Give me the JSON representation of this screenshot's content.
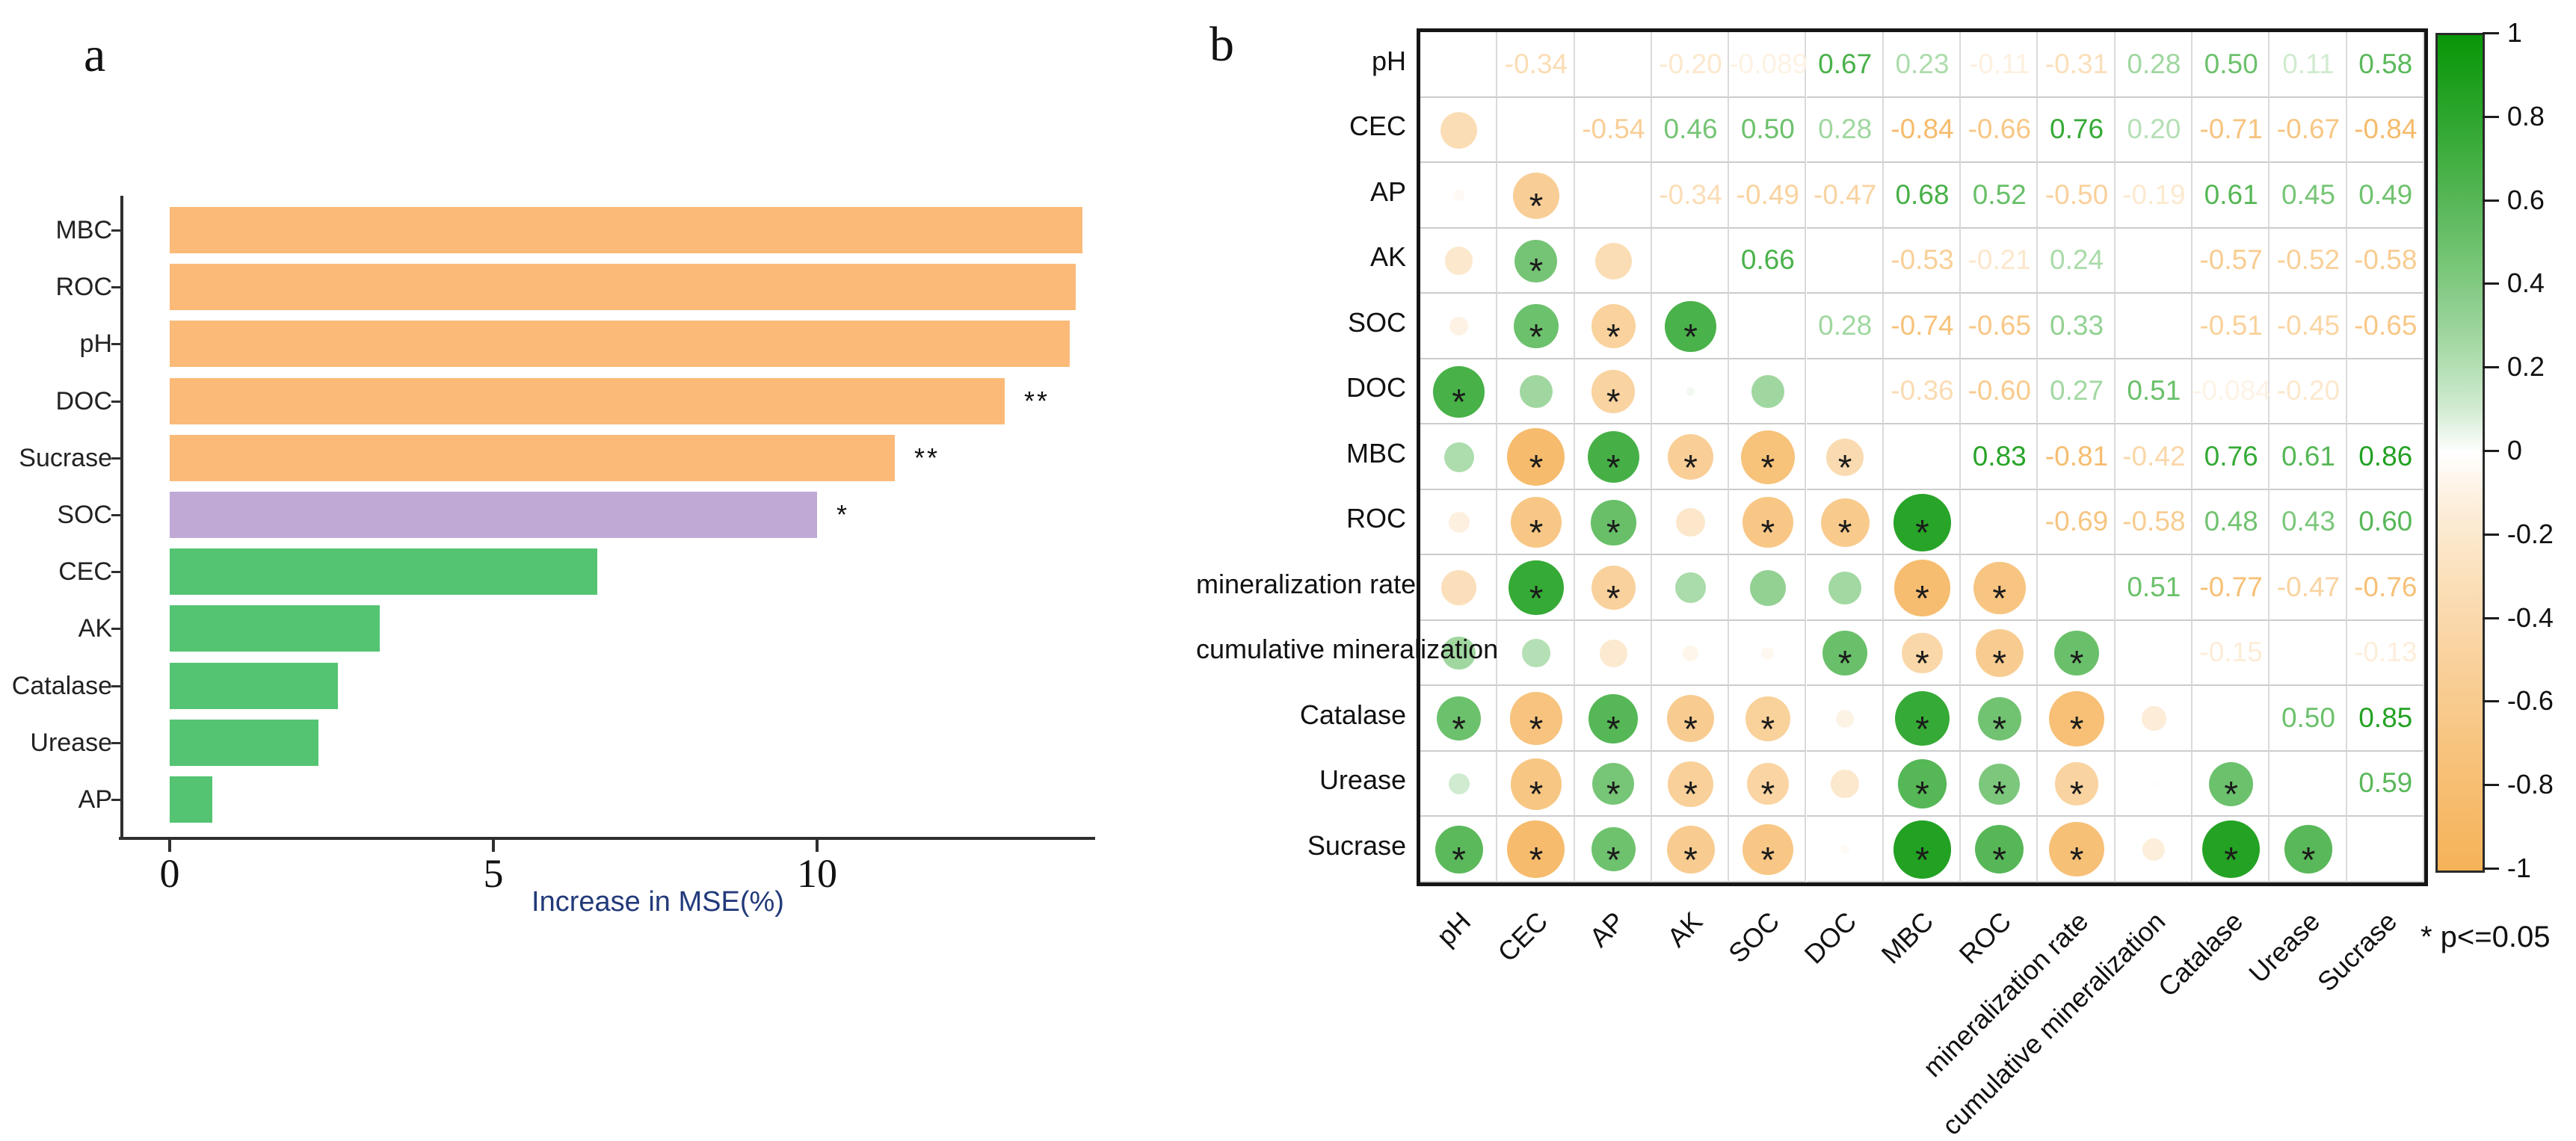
{
  "figure": {
    "panel_a_letter": "a",
    "panel_b_letter": "b",
    "legend_note": "* p<=0.05"
  },
  "colors": {
    "bar_orange": "#fbba78",
    "bar_purple": "#c0a9d4",
    "bar_green": "#54c472",
    "positive_end": "#089608",
    "negative_end": "#f5b258",
    "axis_title_color": "#223a7a",
    "axis_line": "#2f2f2f",
    "text": "#111111"
  },
  "chart_data": [
    {
      "type": "bar",
      "orientation": "horizontal",
      "title": "",
      "xlabel": "Increase in MSE(%)",
      "ylabel": "",
      "xlim": [
        0,
        14.3
      ],
      "xticks": [
        0,
        5,
        10
      ],
      "grid": false,
      "categories": [
        "MBC",
        "ROC",
        "pH",
        "DOC",
        "Sucrase",
        "SOC",
        "CEC",
        "AK",
        "Catalase",
        "Urease",
        "AP"
      ],
      "values": [
        14.1,
        14.0,
        13.9,
        12.9,
        11.2,
        10.0,
        6.6,
        3.25,
        2.6,
        2.3,
        0.66
      ],
      "significance": [
        "",
        "",
        "",
        "**",
        "**",
        "*",
        "",
        "",
        "",
        "",
        ""
      ],
      "bar_colors": [
        "orange",
        "orange",
        "orange",
        "orange",
        "orange",
        "purple",
        "green",
        "green",
        "green",
        "green",
        "green"
      ]
    },
    {
      "type": "heatmap",
      "variant": "correlation-matrix",
      "title": "",
      "labels": [
        "pH",
        "CEC",
        "AP",
        "AK",
        "SOC",
        "DOC",
        "MBC",
        "ROC",
        "mineralization rate",
        "cumulative mineralization",
        "Catalase",
        "Urease",
        "Sucrase"
      ],
      "legend_note": "* p<=0.05",
      "colorbar_ticks": [
        "1",
        "0.8",
        "0.6",
        "0.4",
        "0.2",
        "0",
        "-0.2",
        "-0.4",
        "-0.6",
        "-0.8",
        "-1"
      ],
      "colorbar_range": [
        1,
        -1
      ],
      "pair_format": [
        "row_index",
        "col_index",
        "r",
        "display_label",
        "significant"
      ],
      "pairs": [
        [
          0,
          1,
          -0.34,
          "-0.34",
          0
        ],
        [
          0,
          2,
          -0.03,
          "",
          0
        ],
        [
          0,
          3,
          -0.2,
          "-0.20",
          0
        ],
        [
          0,
          4,
          -0.089,
          "-0.089",
          0
        ],
        [
          0,
          5,
          0.67,
          "0.67",
          1
        ],
        [
          0,
          6,
          0.23,
          "0.23",
          0
        ],
        [
          0,
          7,
          -0.11,
          "-0.11",
          0
        ],
        [
          0,
          8,
          -0.31,
          "-0.31",
          0
        ],
        [
          0,
          9,
          0.28,
          "0.28",
          0
        ],
        [
          0,
          10,
          0.5,
          "0.50",
          1
        ],
        [
          0,
          11,
          0.11,
          "0.11",
          0
        ],
        [
          0,
          12,
          0.58,
          "0.58",
          1
        ],
        [
          1,
          2,
          -0.54,
          "-0.54",
          1
        ],
        [
          1,
          3,
          0.46,
          "0.46",
          1
        ],
        [
          1,
          4,
          0.5,
          "0.50",
          1
        ],
        [
          1,
          5,
          0.28,
          "0.28",
          0
        ],
        [
          1,
          6,
          -0.84,
          "-0.84",
          1
        ],
        [
          1,
          7,
          -0.66,
          "-0.66",
          1
        ],
        [
          1,
          8,
          0.76,
          "0.76",
          1
        ],
        [
          1,
          9,
          0.2,
          "0.20",
          0
        ],
        [
          1,
          10,
          -0.71,
          "-0.71",
          1
        ],
        [
          1,
          11,
          -0.67,
          "-0.67",
          1
        ],
        [
          1,
          12,
          -0.84,
          "-0.84",
          1
        ],
        [
          2,
          3,
          -0.34,
          "-0.34",
          0
        ],
        [
          2,
          4,
          -0.49,
          "-0.49",
          1
        ],
        [
          2,
          5,
          -0.47,
          "-0.47",
          1
        ],
        [
          2,
          6,
          0.68,
          "0.68",
          1
        ],
        [
          2,
          7,
          0.52,
          "0.52",
          1
        ],
        [
          2,
          8,
          -0.5,
          "-0.50",
          1
        ],
        [
          2,
          9,
          -0.19,
          "-0.19",
          0
        ],
        [
          2,
          10,
          0.61,
          "0.61",
          1
        ],
        [
          2,
          11,
          0.45,
          "0.45",
          1
        ],
        [
          2,
          12,
          0.49,
          "0.49",
          1
        ],
        [
          3,
          4,
          0.66,
          "0.66",
          1
        ],
        [
          3,
          5,
          0.02,
          "",
          0
        ],
        [
          3,
          6,
          -0.53,
          "-0.53",
          1
        ],
        [
          3,
          7,
          -0.21,
          "-0.21",
          0
        ],
        [
          3,
          8,
          0.24,
          "0.24",
          0
        ],
        [
          3,
          9,
          -0.06,
          "",
          0
        ],
        [
          3,
          10,
          -0.57,
          "-0.57",
          1
        ],
        [
          3,
          11,
          -0.52,
          "-0.52",
          1
        ],
        [
          3,
          12,
          -0.58,
          "-0.58",
          1
        ],
        [
          4,
          5,
          0.28,
          "0.28",
          0
        ],
        [
          4,
          6,
          -0.74,
          "-0.74",
          1
        ],
        [
          4,
          7,
          -0.65,
          "-0.65",
          1
        ],
        [
          4,
          8,
          0.33,
          "0.33",
          0
        ],
        [
          4,
          9,
          -0.04,
          "",
          0
        ],
        [
          4,
          10,
          -0.51,
          "-0.51",
          1
        ],
        [
          4,
          11,
          -0.45,
          "-0.45",
          1
        ],
        [
          4,
          12,
          -0.65,
          "-0.65",
          1
        ],
        [
          5,
          6,
          -0.36,
          "-0.36",
          1
        ],
        [
          5,
          7,
          -0.6,
          "-0.60",
          1
        ],
        [
          5,
          8,
          0.27,
          "0.27",
          0
        ],
        [
          5,
          9,
          0.51,
          "0.51",
          1
        ],
        [
          5,
          10,
          -0.084,
          "-0.084",
          0
        ],
        [
          5,
          11,
          -0.2,
          "-0.20",
          0
        ],
        [
          5,
          12,
          -0.02,
          "",
          0
        ],
        [
          6,
          7,
          0.83,
          "0.83",
          1
        ],
        [
          6,
          8,
          -0.81,
          "-0.81",
          1
        ],
        [
          6,
          9,
          -0.42,
          "-0.42",
          1
        ],
        [
          6,
          10,
          0.76,
          "0.76",
          1
        ],
        [
          6,
          11,
          0.61,
          "0.61",
          1
        ],
        [
          6,
          12,
          0.86,
          "0.86",
          1
        ],
        [
          7,
          8,
          -0.69,
          "-0.69",
          1
        ],
        [
          7,
          9,
          -0.58,
          "-0.58",
          1
        ],
        [
          7,
          10,
          0.48,
          "0.48",
          1
        ],
        [
          7,
          11,
          0.43,
          "0.43",
          1
        ],
        [
          7,
          12,
          0.6,
          "0.60",
          1
        ],
        [
          8,
          9,
          0.51,
          "0.51",
          1
        ],
        [
          8,
          10,
          -0.77,
          "-0.77",
          1
        ],
        [
          8,
          11,
          -0.47,
          "-0.47",
          1
        ],
        [
          8,
          12,
          -0.76,
          "-0.76",
          1
        ],
        [
          9,
          10,
          -0.15,
          "-0.15",
          0
        ],
        [
          9,
          11,
          -0.01,
          "",
          0
        ],
        [
          9,
          12,
          -0.13,
          "-0.13",
          0
        ],
        [
          10,
          11,
          0.5,
          "0.50",
          1
        ],
        [
          10,
          12,
          0.85,
          "0.85",
          1
        ],
        [
          11,
          12,
          0.59,
          "0.59",
          1
        ]
      ]
    }
  ]
}
